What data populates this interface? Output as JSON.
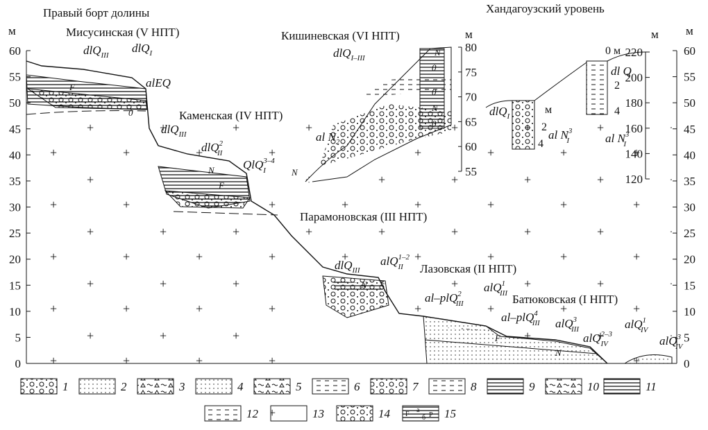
{
  "title": "Правый борт долины",
  "axis": {
    "unit": "м",
    "left_ticks": [
      0,
      5,
      10,
      15,
      20,
      25,
      30,
      35,
      40,
      45,
      50,
      55,
      60
    ],
    "right_ticks": [
      0,
      5,
      10,
      15,
      20,
      25,
      30,
      35,
      40,
      45,
      50,
      55,
      60
    ]
  },
  "terraces": [
    "Мисусинская (V НПТ)",
    "Каменская (IV НПТ)",
    "Кишиневская (VI НПТ)",
    "Хандагоузский уровень",
    "Парамоновская (III НПТ)",
    "Лазовская (II НПТ)",
    "Батюковская (I НПТ)"
  ],
  "inset_kishinev": {
    "unit": "м",
    "ticks": [
      55,
      60,
      65,
      70,
      75,
      80
    ]
  },
  "inset_khandagou": {
    "unit": "м",
    "ticks": [
      120,
      140,
      160,
      180,
      200,
      220
    ]
  },
  "inner_scales": [
    "м",
    "2",
    "4",
    "0 м",
    "2",
    "4"
  ],
  "formulas": [
    {
      "base": "dlQ",
      "sub": "III"
    },
    {
      "base": "dlQ",
      "sub": "I"
    },
    {
      "base": "alEQ"
    },
    {
      "base": "dlQ",
      "sub": "III"
    },
    {
      "base": "dlQ",
      "sub": "II",
      "sup": "2"
    },
    {
      "base": "QlQ",
      "sub": "I",
      "sup": "3–4"
    },
    {
      "base": "al N",
      "sub": "2"
    },
    {
      "base": "dlQ",
      "sub": "I–III"
    },
    {
      "base": "dlQ",
      "sub": "I"
    },
    {
      "base": "dl Q"
    },
    {
      "base": "al N",
      "sub": "I",
      "sup": "3"
    },
    {
      "base": "al N",
      "sub": "I",
      "sup": "3"
    },
    {
      "base": "dlQ",
      "sub": "III"
    },
    {
      "base": "alQ",
      "sub": "II",
      "sup": "1–2"
    },
    {
      "base": "al–plQ",
      "sub": "III",
      "sup": "2"
    },
    {
      "base": "alQ",
      "sub": "III",
      "sup": "1"
    },
    {
      "base": "al–plQ",
      "sub": "III",
      "sup": "4"
    },
    {
      "base": "alQ",
      "sub": "III",
      "sup": "3"
    },
    {
      "base": "alQ",
      "sub": "IV",
      "sup": "2–3"
    },
    {
      "base": "alQ",
      "sub": "IV",
      "sup": "1"
    },
    {
      "base": "alQ",
      "sub": "IV",
      "sup": "3"
    }
  ],
  "map_marks": [
    "0",
    "N",
    "0",
    "N",
    "0",
    "N",
    "0",
    "N",
    "N",
    "F",
    "F",
    "F",
    "N"
  ],
  "legend": [
    1,
    2,
    3,
    4,
    5,
    6,
    7,
    8,
    9,
    10,
    11,
    12,
    13,
    14,
    15
  ],
  "legend_15_marks": [
    "F",
    "а",
    "б",
    "Р"
  ]
}
